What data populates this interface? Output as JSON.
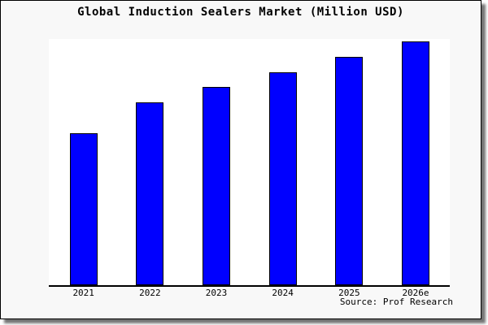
{
  "figure": {
    "title": "Global Induction Sealers Market (Million USD)",
    "source": "Source: Prof Research"
  },
  "chart_data": {
    "type": "bar",
    "title": "Global Induction Sealers Market (Million USD)",
    "categories": [
      "2021",
      "2022",
      "2023",
      "2024",
      "2025",
      "2026e"
    ],
    "values": [
      100,
      120,
      130,
      140,
      150,
      160
    ],
    "values_note": "no numeric y-axis shown; values are relative estimates from bar heights",
    "xlabel": "",
    "ylabel": "",
    "ylim": [
      0,
      162
    ],
    "grid": false,
    "legend": false,
    "y_axis_visible": false,
    "source": "Source: Prof Research"
  },
  "colors": {
    "figure_background": "#f8f8f8",
    "plot_background": "#ffffff",
    "bar_fill": "#0000ff",
    "bar_border": "#000000",
    "axis_line": "#000000",
    "text": "#000000"
  }
}
